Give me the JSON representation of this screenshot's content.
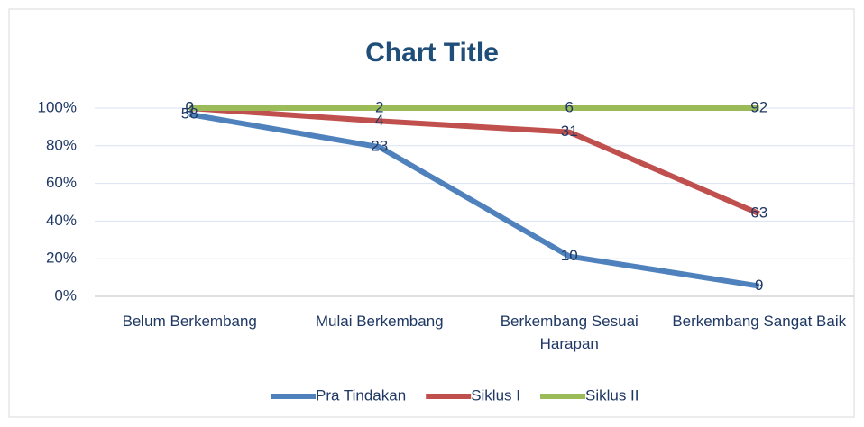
{
  "chart_data": {
    "type": "line",
    "stacked_percent": true,
    "title": "Chart Title",
    "categories": [
      "Belum Berkembang",
      "Mulai Berkembang",
      "Berkembang Sesuai Harapan",
      "Berkembang Sangat Baik"
    ],
    "series": [
      {
        "name": "Pra Tindakan",
        "color": "#4f81bd",
        "values": [
          58,
          23,
          10,
          9
        ]
      },
      {
        "name": "Siklus I",
        "color": "#c0504d",
        "values": [
          2,
          4,
          31,
          63
        ]
      },
      {
        "name": "Siklus II",
        "color": "#9bbb59",
        "values": [
          0,
          2,
          6,
          92
        ]
      }
    ],
    "ylim": [
      0,
      100
    ],
    "yticks": [
      {
        "value": 0,
        "label": "0%"
      },
      {
        "value": 20,
        "label": "20%"
      },
      {
        "value": 40,
        "label": "40%"
      },
      {
        "value": 60,
        "label": "60%"
      },
      {
        "value": 80,
        "label": "80%"
      },
      {
        "value": 100,
        "label": "100%"
      }
    ],
    "grid": true,
    "legend": "bottom"
  }
}
